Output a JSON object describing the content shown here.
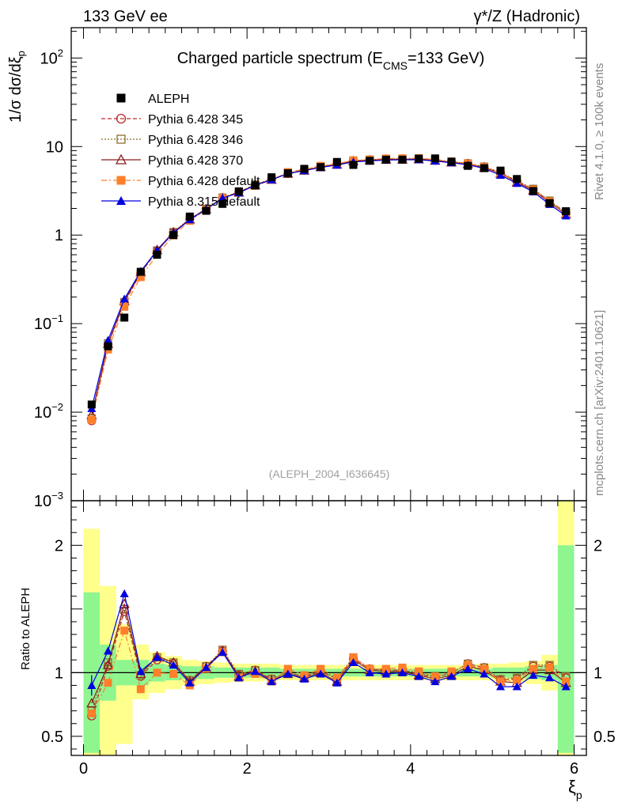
{
  "header": {
    "left": "133 GeV ee",
    "right": "γ*/Z (Hadronic)"
  },
  "side_labels": {
    "rivet": "Rivet 4.1.0, ≥ 100k events",
    "mcplots": "mcplots.cern.ch [arXiv:2401.10621]"
  },
  "chart_data": [
    {
      "type": "scatter",
      "panel": "main",
      "title": "Charged particle spectrum (E_CMS=133 GeV)",
      "title_main": "Charged particle spectrum (E",
      "title_sub": "CMS",
      "title_end": "=133 GeV)",
      "ylabel": "1/σ  dσ/dξ_p",
      "ylabel_main": "1/σ  dσ/dξ",
      "ylabel_sub": "p",
      "yscale": "log",
      "ylim": [
        0.001,
        220
      ],
      "xlim": [
        -0.15,
        6.15
      ],
      "grid": false,
      "legend_position": "top-left",
      "watermark": "(ALEPH_2004_I636645)",
      "y_ticks": [
        {
          "value": 0.001,
          "base": "10",
          "exp": "−3"
        },
        {
          "value": 0.01,
          "base": "10",
          "exp": "−2"
        },
        {
          "value": 0.1,
          "base": "10",
          "exp": "−1"
        },
        {
          "value": 1,
          "base": "1",
          "exp": ""
        },
        {
          "value": 10,
          "base": "10",
          "exp": ""
        },
        {
          "value": 100,
          "base": "10",
          "exp": "2"
        }
      ],
      "x": [
        0.1,
        0.3,
        0.5,
        0.7,
        0.9,
        1.1,
        1.3,
        1.5,
        1.7,
        1.9,
        2.1,
        2.3,
        2.5,
        2.7,
        2.9,
        3.1,
        3.3,
        3.5,
        3.7,
        3.9,
        4.1,
        4.3,
        4.5,
        4.7,
        4.9,
        5.1,
        5.3,
        5.5,
        5.7,
        5.9
      ],
      "series": [
        {
          "name": "ALEPH",
          "color": "#000000",
          "marker": "filled-square",
          "line": "none",
          "values": [
            0.0122,
            0.0555,
            0.117,
            0.385,
            0.6,
            1.0,
            1.62,
            1.88,
            2.25,
            3.12,
            3.64,
            4.5,
            5.0,
            5.6,
            5.86,
            6.7,
            6.2,
            6.9,
            7.1,
            7.1,
            7.3,
            7.35,
            6.75,
            6.05,
            5.7,
            5.35,
            4.3,
            3.15,
            2.3,
            1.86
          ]
        },
        {
          "name": "Pythia 6.428 345",
          "color": "#c1272d",
          "marker": "open-circle",
          "line": "dashed",
          "values": [
            0.008,
            0.058,
            0.172,
            0.37,
            0.66,
            1.07,
            1.52,
            1.97,
            2.64,
            3.06,
            3.7,
            4.26,
            4.97,
            5.41,
            5.92,
            6.32,
            6.9,
            7.08,
            7.22,
            7.22,
            7.24,
            7.0,
            6.7,
            6.44,
            5.9,
            5.05,
            4.07,
            3.28,
            2.42,
            1.78
          ]
        },
        {
          "name": "Pythia 6.428 346",
          "color": "#8b6e2a",
          "marker": "open-square",
          "line": "dotted",
          "values": [
            0.0085,
            0.06,
            0.175,
            0.375,
            0.67,
            1.08,
            1.53,
            1.98,
            2.65,
            3.08,
            3.72,
            4.28,
            5.0,
            5.45,
            5.96,
            6.36,
            6.95,
            7.12,
            7.26,
            7.26,
            7.27,
            7.02,
            6.72,
            6.46,
            5.93,
            5.1,
            4.12,
            3.33,
            2.45,
            1.8
          ]
        },
        {
          "name": "Pythia 6.428 370",
          "color": "#8b1a1a",
          "marker": "open-triangle",
          "line": "solid",
          "values": [
            0.0093,
            0.059,
            0.18,
            0.38,
            0.68,
            1.08,
            1.5,
            1.96,
            2.62,
            3.03,
            3.66,
            4.22,
            4.94,
            5.36,
            5.86,
            6.26,
            6.85,
            7.02,
            7.16,
            7.16,
            7.18,
            6.95,
            6.64,
            6.35,
            5.8,
            4.95,
            3.95,
            3.2,
            2.34,
            1.72
          ]
        },
        {
          "name": "Pythia 6.428 default",
          "color": "#ff7f2a",
          "marker": "filled-square",
          "line": "dashdot",
          "values": [
            0.0082,
            0.051,
            0.155,
            0.335,
            0.6,
            0.99,
            1.45,
            1.94,
            2.62,
            3.0,
            3.6,
            4.2,
            5.15,
            5.5,
            6.05,
            6.4,
            6.97,
            7.12,
            7.33,
            7.37,
            7.4,
            7.13,
            6.8,
            6.44,
            5.88,
            4.98,
            4.04,
            3.26,
            2.4,
            1.72
          ]
        },
        {
          "name": "Pythia 8.315 default",
          "color": "#0000e0",
          "marker": "filled-triangle",
          "line": "solid",
          "values": [
            0.011,
            0.065,
            0.19,
            0.39,
            0.67,
            1.06,
            1.49,
            1.96,
            2.62,
            3.0,
            3.66,
            4.2,
            4.97,
            5.34,
            5.8,
            6.17,
            6.71,
            6.87,
            7.04,
            7.08,
            7.1,
            6.86,
            6.56,
            6.22,
            5.66,
            4.75,
            3.84,
            3.08,
            2.22,
            1.65
          ]
        }
      ]
    },
    {
      "type": "scatter",
      "panel": "ratio",
      "xlabel": "ξ_p",
      "xlabel_main": "ξ",
      "xlabel_sub": "p",
      "ylabel": "Ratio to ALEPH",
      "ylim": [
        0.35,
        2.35
      ],
      "xlim": [
        -0.15,
        6.15
      ],
      "x_ticks": [
        0,
        2,
        4,
        6
      ],
      "x_tick_labels": [
        "0",
        "2",
        "4",
        "6"
      ],
      "y_ticks": [
        0.5,
        1,
        2
      ],
      "y_tick_labels": [
        "0.5",
        "1",
        "2"
      ],
      "reference_line": 1,
      "bins": [
        0,
        0.2,
        0.4,
        0.6,
        0.8,
        1.0,
        1.2,
        1.4,
        1.6,
        1.8,
        2.0,
        2.2,
        2.4,
        2.6,
        2.8,
        3.0,
        3.2,
        3.4,
        3.6,
        3.8,
        4.0,
        4.2,
        4.4,
        4.6,
        4.8,
        5.0,
        5.2,
        5.4,
        5.6,
        5.8,
        6.0
      ],
      "band_stat": {
        "name": "stat",
        "color": "#8ff58f",
        "lower": [
          0.37,
          0.78,
          0.9,
          0.9,
          0.93,
          0.94,
          0.95,
          0.95,
          0.96,
          0.96,
          0.96,
          0.96,
          0.97,
          0.97,
          0.97,
          0.97,
          0.97,
          0.97,
          0.97,
          0.97,
          0.97,
          0.97,
          0.97,
          0.97,
          0.97,
          0.96,
          0.96,
          0.95,
          0.94,
          0.37
        ],
        "upper": [
          1.63,
          1.22,
          1.1,
          1.1,
          1.07,
          1.06,
          1.05,
          1.05,
          1.04,
          1.04,
          1.04,
          1.04,
          1.03,
          1.03,
          1.03,
          1.03,
          1.03,
          1.03,
          1.03,
          1.03,
          1.03,
          1.03,
          1.03,
          1.03,
          1.03,
          1.04,
          1.04,
          1.05,
          1.06,
          2.0
        ]
      },
      "band_total": {
        "name": "total",
        "color": "#ffff8c",
        "lower": [
          0.35,
          0.35,
          0.44,
          0.79,
          0.84,
          0.87,
          0.9,
          0.91,
          0.92,
          0.93,
          0.93,
          0.94,
          0.94,
          0.94,
          0.94,
          0.94,
          0.94,
          0.94,
          0.94,
          0.94,
          0.94,
          0.94,
          0.94,
          0.94,
          0.94,
          0.93,
          0.93,
          0.91,
          0.86,
          0.35
        ],
        "upper": [
          2.13,
          1.68,
          1.38,
          1.22,
          1.16,
          1.13,
          1.1,
          1.09,
          1.08,
          1.07,
          1.07,
          1.07,
          1.06,
          1.06,
          1.06,
          1.06,
          1.06,
          1.06,
          1.06,
          1.06,
          1.06,
          1.06,
          1.06,
          1.06,
          1.07,
          1.07,
          1.08,
          1.09,
          1.14,
          2.35
        ]
      },
      "x": [
        0.1,
        0.3,
        0.5,
        0.7,
        0.9,
        1.1,
        1.3,
        1.5,
        1.7,
        1.9,
        2.1,
        2.3,
        2.5,
        2.7,
        2.9,
        3.1,
        3.3,
        3.5,
        3.7,
        3.9,
        4.1,
        4.3,
        4.5,
        4.7,
        4.9,
        5.1,
        5.3,
        5.5,
        5.7,
        5.9
      ],
      "series": [
        {
          "name": "Pythia 6.428 345",
          "color": "#c1272d",
          "marker": "open-circle",
          "line": "dashed",
          "values": [
            0.66,
            1.05,
            1.48,
            0.97,
            1.1,
            1.07,
            0.94,
            1.05,
            1.17,
            0.98,
            1.02,
            0.95,
            1.0,
            0.97,
            1.01,
            0.95,
            1.11,
            1.03,
            1.02,
            1.02,
            0.99,
            0.96,
            1.0,
            1.07,
            1.04,
            0.94,
            0.95,
            1.05,
            1.05,
            0.96
          ]
        },
        {
          "name": "Pythia 6.428 346",
          "color": "#8b6e2a",
          "marker": "open-square",
          "line": "dotted",
          "values": [
            0.7,
            1.08,
            1.5,
            0.98,
            1.12,
            1.08,
            0.94,
            1.05,
            1.18,
            0.99,
            1.02,
            0.95,
            1.0,
            0.97,
            1.02,
            0.95,
            1.12,
            1.03,
            1.02,
            1.02,
            1.0,
            0.96,
            1.0,
            1.07,
            1.04,
            0.95,
            0.96,
            1.06,
            1.06,
            0.97
          ]
        },
        {
          "name": "Pythia 6.428 370",
          "color": "#8b1a1a",
          "marker": "open-triangle",
          "line": "solid",
          "values": [
            0.76,
            1.06,
            1.54,
            0.99,
            1.13,
            1.08,
            0.93,
            1.04,
            1.17,
            0.97,
            1.01,
            0.94,
            0.99,
            0.96,
            1.0,
            0.93,
            1.1,
            1.02,
            1.01,
            1.01,
            0.98,
            0.95,
            0.98,
            1.05,
            1.02,
            0.93,
            0.92,
            1.02,
            1.02,
            0.92
          ]
        },
        {
          "name": "Pythia 6.428 default",
          "color": "#ff7f2a",
          "marker": "filled-square",
          "line": "dashdot",
          "values": [
            0.68,
            0.92,
            1.33,
            0.87,
            1.0,
            0.99,
            0.9,
            1.03,
            1.16,
            0.96,
            0.99,
            0.93,
            1.03,
            0.98,
            1.03,
            0.96,
            1.12,
            1.03,
            1.03,
            1.04,
            1.01,
            0.97,
            1.01,
            1.06,
            1.03,
            0.93,
            0.94,
            1.03,
            1.04,
            0.93
          ]
        },
        {
          "name": "Pythia 8.315 default",
          "color": "#0000e0",
          "marker": "filled-triangle",
          "line": "solid",
          "values": [
            0.9,
            1.17,
            1.62,
            1.01,
            1.12,
            1.06,
            0.92,
            1.04,
            1.16,
            0.96,
            1.01,
            0.93,
            0.99,
            0.95,
            0.99,
            0.92,
            1.08,
            1.0,
            0.99,
            1.0,
            0.97,
            0.93,
            0.97,
            1.03,
            0.99,
            0.89,
            0.89,
            0.98,
            0.96,
            0.89
          ]
        }
      ],
      "ratio_error": {
        "series": "Pythia 8.315 default",
        "x": 0.1,
        "low": 0.82,
        "high": 0.98
      }
    }
  ]
}
